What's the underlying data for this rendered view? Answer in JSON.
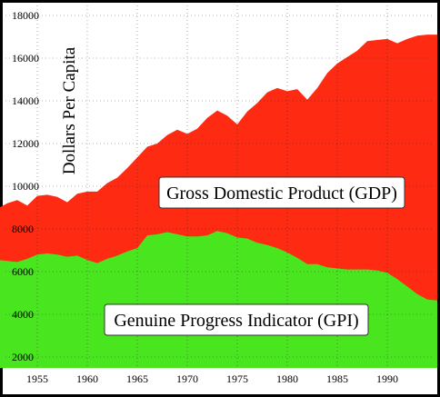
{
  "chart_data": {
    "type": "area",
    "title": "",
    "xlabel": "",
    "ylabel": "Dollars Per Capita",
    "xlim": [
      1950,
      1995
    ],
    "ylim": [
      1500,
      18000
    ],
    "x_ticks": [
      1955,
      1960,
      1965,
      1970,
      1975,
      1980,
      1985,
      1990
    ],
    "y_ticks": [
      2000,
      4000,
      6000,
      8000,
      10000,
      12000,
      14000,
      16000,
      18000
    ],
    "grid": true,
    "series": [
      {
        "name": "Gross Domestic Product (GDP)",
        "color": "#ff2a12",
        "points": [
          [
            1950,
            8500
          ],
          [
            1951,
            8950
          ],
          [
            1952,
            9200
          ],
          [
            1953,
            9350
          ],
          [
            1954,
            9100
          ],
          [
            1955,
            9550
          ],
          [
            1956,
            9600
          ],
          [
            1957,
            9500
          ],
          [
            1958,
            9250
          ],
          [
            1959,
            9650
          ],
          [
            1960,
            9750
          ],
          [
            1961,
            9750
          ],
          [
            1962,
            10150
          ],
          [
            1963,
            10400
          ],
          [
            1964,
            10850
          ],
          [
            1965,
            11350
          ],
          [
            1966,
            11850
          ],
          [
            1967,
            12000
          ],
          [
            1968,
            12400
          ],
          [
            1969,
            12650
          ],
          [
            1970,
            12450
          ],
          [
            1971,
            12700
          ],
          [
            1972,
            13200
          ],
          [
            1973,
            13550
          ],
          [
            1974,
            13300
          ],
          [
            1975,
            12900
          ],
          [
            1976,
            13500
          ],
          [
            1977,
            13900
          ],
          [
            1978,
            14400
          ],
          [
            1979,
            14600
          ],
          [
            1980,
            14450
          ],
          [
            1981,
            14550
          ],
          [
            1982,
            14050
          ],
          [
            1983,
            14600
          ],
          [
            1984,
            15300
          ],
          [
            1985,
            15750
          ],
          [
            1986,
            16050
          ],
          [
            1987,
            16350
          ],
          [
            1988,
            16800
          ],
          [
            1989,
            16850
          ],
          [
            1990,
            16900
          ],
          [
            1991,
            16700
          ],
          [
            1992,
            16900
          ],
          [
            1993,
            17050
          ],
          [
            1994,
            17100
          ],
          [
            1995,
            17100
          ]
        ]
      },
      {
        "name": "Genuine Progress Indicator (GPI)",
        "color": "#49e51f",
        "points": [
          [
            1950,
            6500
          ],
          [
            1951,
            6550
          ],
          [
            1952,
            6500
          ],
          [
            1953,
            6450
          ],
          [
            1954,
            6600
          ],
          [
            1955,
            6800
          ],
          [
            1956,
            6850
          ],
          [
            1957,
            6800
          ],
          [
            1958,
            6700
          ],
          [
            1959,
            6750
          ],
          [
            1960,
            6550
          ],
          [
            1961,
            6400
          ],
          [
            1962,
            6600
          ],
          [
            1963,
            6750
          ],
          [
            1964,
            6950
          ],
          [
            1965,
            7100
          ],
          [
            1966,
            7700
          ],
          [
            1967,
            7750
          ],
          [
            1968,
            7850
          ],
          [
            1969,
            7750
          ],
          [
            1970,
            7650
          ],
          [
            1971,
            7650
          ],
          [
            1972,
            7700
          ],
          [
            1973,
            7900
          ],
          [
            1974,
            7800
          ],
          [
            1975,
            7600
          ],
          [
            1976,
            7550
          ],
          [
            1977,
            7350
          ],
          [
            1978,
            7250
          ],
          [
            1979,
            7100
          ],
          [
            1980,
            6900
          ],
          [
            1981,
            6650
          ],
          [
            1982,
            6350
          ],
          [
            1983,
            6350
          ],
          [
            1984,
            6200
          ],
          [
            1985,
            6150
          ],
          [
            1986,
            6100
          ],
          [
            1987,
            6100
          ],
          [
            1988,
            6100
          ],
          [
            1989,
            6050
          ],
          [
            1990,
            5950
          ],
          [
            1991,
            5650
          ],
          [
            1992,
            5300
          ],
          [
            1993,
            4950
          ],
          [
            1994,
            4700
          ],
          [
            1995,
            4650
          ]
        ]
      }
    ],
    "labels": {
      "gdp": "Gross Domestic Product (GDP)",
      "gpi": "Genuine Progress Indicator (GPI)"
    }
  }
}
